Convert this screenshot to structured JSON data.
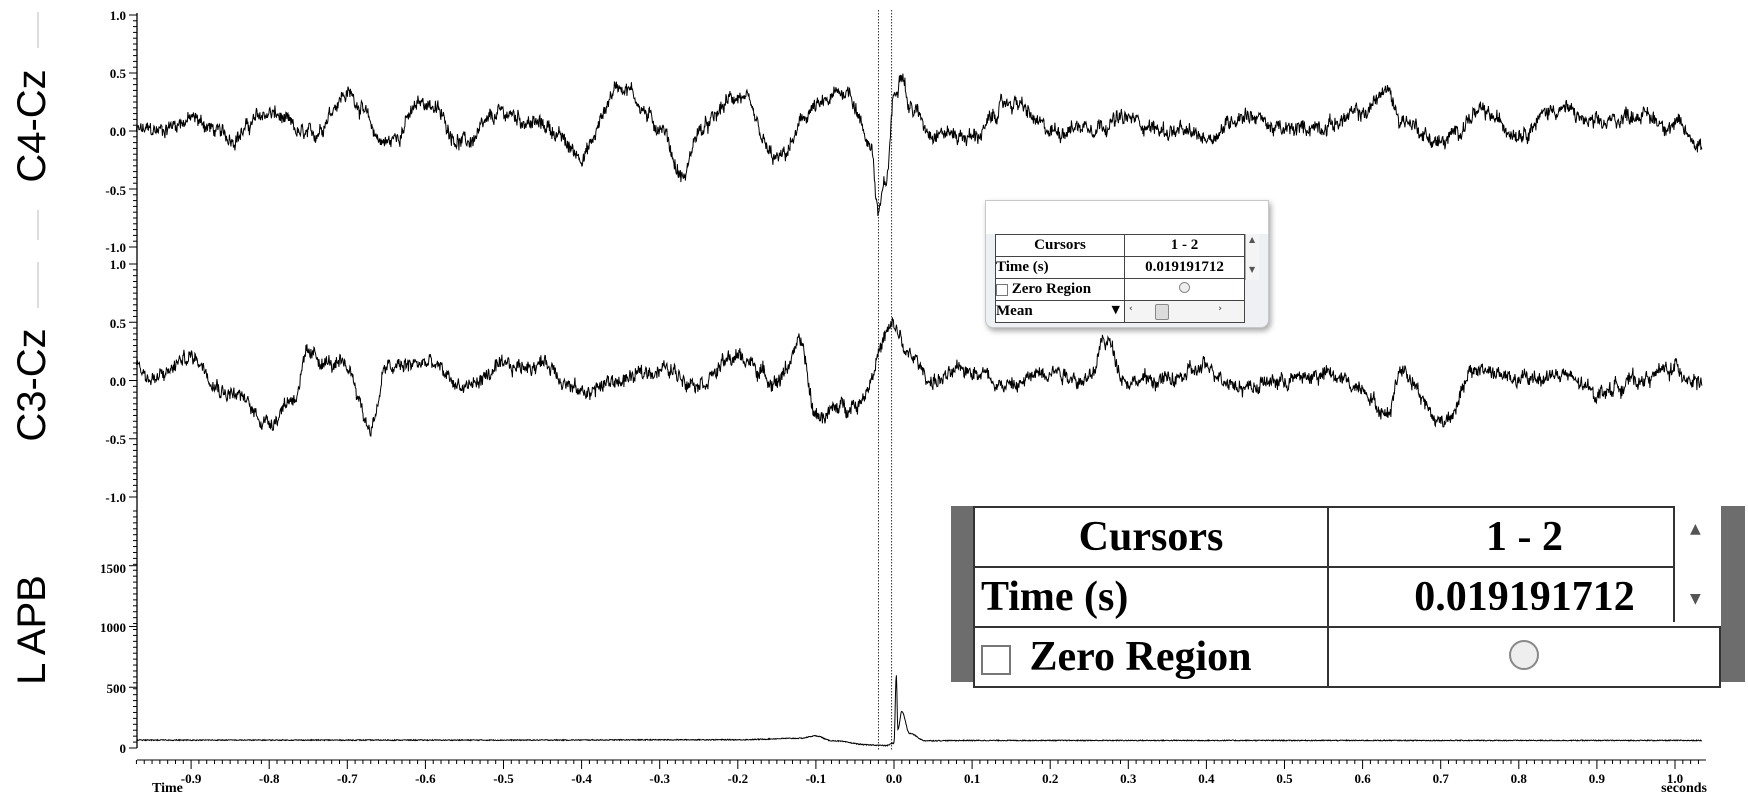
{
  "channels": [
    {
      "id": "c4",
      "label": "C4-Cz",
      "yticks": [
        "1.0",
        "0.5",
        "0.0",
        "-0.5",
        "-1.0"
      ]
    },
    {
      "id": "c3",
      "label": "C3-Cz",
      "yticks": [
        "1.0",
        "0.5",
        "0.0",
        "-0.5",
        "-1.0"
      ]
    },
    {
      "id": "apb",
      "label": "L APB",
      "yticks": [
        "1500",
        "1000",
        "500",
        "0"
      ]
    }
  ],
  "xaxis": {
    "ticks": [
      "-0.9",
      "-0.8",
      "-0.7",
      "-0.6",
      "-0.5",
      "-0.4",
      "-0.3",
      "-0.2",
      "-0.1",
      "0.0",
      "0.1",
      "0.2",
      "0.3",
      "0.4",
      "0.5",
      "0.6",
      "0.7",
      "0.8",
      "0.9",
      "1.0"
    ],
    "left_label": "Time",
    "right_label": "seconds"
  },
  "chart_data": [
    {
      "type": "line",
      "ylabel": "C4-Cz",
      "xlim": [
        -0.97,
        1.035
      ],
      "ylim": [
        -1.0,
        1.0
      ],
      "grid": false,
      "x": [
        -0.95,
        -0.9,
        -0.85,
        -0.8,
        -0.75,
        -0.7,
        -0.65,
        -0.6,
        -0.55,
        -0.5,
        -0.45,
        -0.4,
        -0.35,
        -0.3,
        -0.27,
        -0.25,
        -0.2,
        -0.15,
        -0.1,
        -0.06,
        -0.03,
        -0.02,
        -0.01,
        0.0,
        0.01,
        0.02,
        0.05,
        0.1,
        0.15,
        0.2,
        0.25,
        0.3,
        0.35,
        0.4,
        0.45,
        0.5,
        0.55,
        0.6,
        0.63,
        0.65,
        0.7,
        0.75,
        0.8,
        0.85,
        0.9,
        0.95,
        1.0,
        1.03
      ],
      "y": [
        0.0,
        0.1,
        -0.05,
        0.15,
        -0.05,
        0.32,
        -0.1,
        0.25,
        -0.1,
        0.15,
        0.05,
        -0.2,
        0.4,
        0.05,
        -0.4,
        0.0,
        0.3,
        -0.25,
        0.2,
        0.35,
        -0.1,
        -0.7,
        -0.45,
        0.3,
        0.55,
        0.2,
        0.0,
        -0.05,
        0.25,
        0.0,
        0.05,
        0.1,
        0.0,
        -0.05,
        0.15,
        0.0,
        0.05,
        0.15,
        0.35,
        0.1,
        -0.1,
        0.15,
        0.0,
        0.2,
        0.05,
        0.15,
        0.05,
        -0.1
      ]
    },
    {
      "type": "line",
      "ylabel": "C3-Cz",
      "xlim": [
        -0.97,
        1.035
      ],
      "ylim": [
        -1.0,
        1.0
      ],
      "grid": false,
      "x": [
        -0.97,
        -0.95,
        -0.9,
        -0.85,
        -0.8,
        -0.77,
        -0.75,
        -0.7,
        -0.67,
        -0.65,
        -0.6,
        -0.55,
        -0.5,
        -0.45,
        -0.4,
        -0.35,
        -0.3,
        -0.25,
        -0.2,
        -0.15,
        -0.12,
        -0.1,
        -0.05,
        0.0,
        0.02,
        0.05,
        0.1,
        0.15,
        0.2,
        0.25,
        0.27,
        0.3,
        0.35,
        0.4,
        0.45,
        0.5,
        0.55,
        0.6,
        0.63,
        0.65,
        0.7,
        0.75,
        0.8,
        0.85,
        0.9,
        0.95,
        1.0,
        1.03
      ],
      "y": [
        0.15,
        0.0,
        0.2,
        -0.1,
        -0.35,
        -0.15,
        0.2,
        0.1,
        -0.4,
        0.1,
        0.15,
        -0.05,
        0.1,
        0.15,
        -0.1,
        0.0,
        0.1,
        0.0,
        0.2,
        0.0,
        0.3,
        -0.3,
        -0.2,
        0.45,
        0.2,
        0.0,
        0.1,
        -0.05,
        0.1,
        0.0,
        0.35,
        0.0,
        0.0,
        0.1,
        -0.05,
        0.0,
        0.05,
        -0.05,
        -0.3,
        0.1,
        -0.35,
        0.1,
        0.0,
        0.05,
        -0.1,
        0.0,
        0.1,
        0.0
      ]
    },
    {
      "type": "line",
      "ylabel": "L APB",
      "xlim": [
        -0.97,
        1.035
      ],
      "ylim": [
        0,
        1950
      ],
      "grid": false,
      "x": [
        -0.97,
        -0.5,
        -0.2,
        -0.12,
        -0.1,
        -0.08,
        -0.03,
        -0.01,
        0.0,
        0.003,
        0.005,
        0.01,
        0.02,
        0.04,
        0.1,
        0.5,
        1.03
      ],
      "y": [
        65,
        65,
        68,
        80,
        100,
        60,
        25,
        20,
        40,
        600,
        150,
        300,
        120,
        60,
        62,
        62,
        62
      ]
    }
  ],
  "cursor_panel_small": {
    "header_left": "Cursors",
    "header_right": "1 - 2",
    "row_time_label": "Time (s)",
    "row_time_value": "0.019191712",
    "row_zero_label": "Zero Region",
    "row_mean_label": "Mean",
    "dropdown_icon": "triangle-down-icon"
  },
  "cursor_panel_zoom": {
    "header_left": "Cursors",
    "header_right": "1 - 2",
    "row_time_label": "Time (s)",
    "row_time_value": "0.019191712",
    "row_zero_label": "Zero Region"
  },
  "cursors": [
    -0.02,
    -0.003
  ]
}
